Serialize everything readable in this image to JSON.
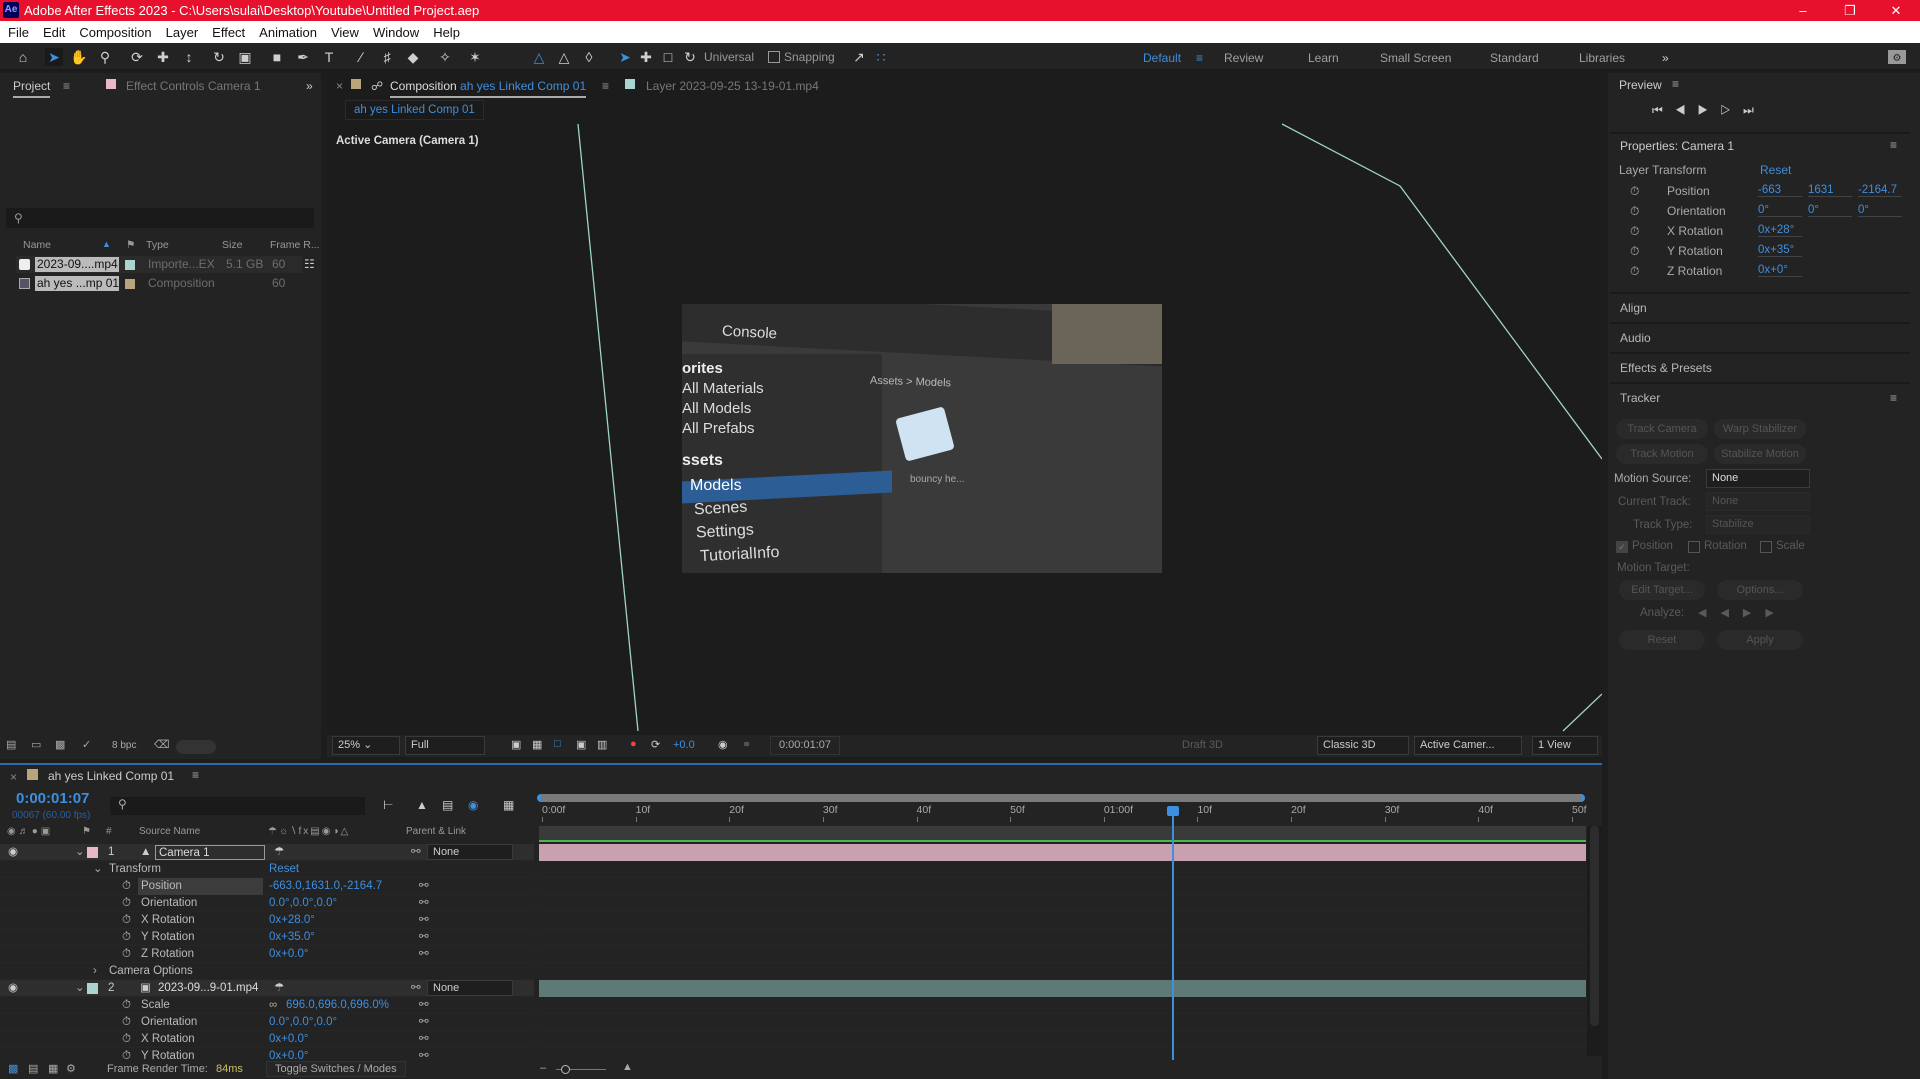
{
  "window": {
    "title": "Adobe After Effects 2023 - C:\\Users\\sulai\\Desktop\\Youtube\\Untitled Project.aep",
    "logo": "Ae"
  },
  "menu": [
    "File",
    "Edit",
    "Composition",
    "Layer",
    "Effect",
    "Animation",
    "View",
    "Window",
    "Help"
  ],
  "toolbar": {
    "axis_mode": "Universal",
    "snapping": "Snapping",
    "workspaces": [
      "Default",
      "Review",
      "Learn",
      "Small Screen",
      "Standard",
      "Libraries"
    ],
    "active_workspace": "Default"
  },
  "project_panel": {
    "tab": "Project",
    "effect_controls_tab": "Effect Controls Camera 1",
    "columns": [
      "Name",
      "Type",
      "Size",
      "Frame R..."
    ],
    "items": [
      {
        "name": "2023-09....mp4",
        "type": "Importe...EX",
        "size": "5.1 GB",
        "frame_rate": "60",
        "label_color": "#a9d4d0"
      },
      {
        "name": "ah yes ...mp 01",
        "type": "Composition",
        "size": "",
        "frame_rate": "60",
        "label_color": "#b9a57c"
      }
    ],
    "bpc": "8 bpc"
  },
  "comp_panel": {
    "tab_prefix": "Composition",
    "tab_name": "ah yes Linked Comp 01",
    "layer_tab": "Layer 2023-09-25 13-19-01.mp4",
    "breadcrumb": "ah yes Linked Comp 01",
    "camera_label": "Active Camera (Camera 1)",
    "footage_text": {
      "console": "Console",
      "favorites": "orites",
      "fav_items": [
        "All Materials",
        "All Models",
        "All Prefabs"
      ],
      "assets": "ssets",
      "asset_items": [
        "Models",
        "Scenes",
        "Settings",
        "TutorialInfo"
      ],
      "breadcrumb": "Assets > Models",
      "asset_label": "bouncy he..."
    },
    "footer": {
      "zoom": "25%",
      "resolution": "Full",
      "exposure": "+0.0",
      "timecode": "0:00:01:07",
      "draft": "Draft 3D",
      "renderer": "Classic 3D",
      "view": "Active Camer...",
      "layout": "1 View"
    }
  },
  "preview": {
    "title": "Preview"
  },
  "properties": {
    "title": "Properties: Camera 1",
    "section": "Layer Transform",
    "reset": "Reset",
    "rows": [
      {
        "label": "Position",
        "values": [
          "-663",
          "1631",
          "-2164.7"
        ]
      },
      {
        "label": "Orientation",
        "values": [
          "0°",
          "0°",
          "0°"
        ]
      },
      {
        "label": "X Rotation",
        "values": [
          "0x+28°"
        ]
      },
      {
        "label": "Y Rotation",
        "values": [
          "0x+35°"
        ]
      },
      {
        "label": "Z Rotation",
        "values": [
          "0x+0°"
        ]
      }
    ]
  },
  "collapsed_panels": [
    "Align",
    "Audio",
    "Effects & Presets"
  ],
  "tracker": {
    "title": "Tracker",
    "buttons": [
      "Track Camera",
      "Warp Stabilizer",
      "Track Motion",
      "Stabilize Motion"
    ],
    "motion_source_label": "Motion Source:",
    "motion_source": "None",
    "current_track_label": "Current Track:",
    "current_track": "None",
    "track_type_label": "Track Type:",
    "track_type": "Stabilize",
    "checks": [
      {
        "label": "Position",
        "checked": true
      },
      {
        "label": "Rotation",
        "checked": false
      },
      {
        "label": "Scale",
        "checked": false
      }
    ],
    "motion_target": "Motion Target:",
    "edit_target": "Edit Target...",
    "options": "Options...",
    "analyze": "Analyze:",
    "reset": "Reset",
    "apply": "Apply"
  },
  "timeline": {
    "tab": "ah yes Linked Comp 01",
    "timecode": "0:00:01:07",
    "frames": "00067 (60.00 fps)",
    "columns": {
      "num": "#",
      "source": "Source Name",
      "parent": "Parent & Link"
    },
    "ruler": [
      "0:00f",
      "10f",
      "20f",
      "30f",
      "40f",
      "50f",
      "01:00f",
      "10f",
      "20f",
      "30f",
      "40f",
      "50f"
    ],
    "rows": [
      {
        "kind": "layer",
        "num": "1",
        "name": "Camera 1",
        "parent": "None",
        "color": "#e6b8c8"
      },
      {
        "kind": "group",
        "name": "Transform",
        "value": "Reset"
      },
      {
        "kind": "prop",
        "name": "Position",
        "value": "-663.0,1631.0,-2164.7"
      },
      {
        "kind": "prop",
        "name": "Orientation",
        "value": "0.0°,0.0°,0.0°"
      },
      {
        "kind": "prop",
        "name": "X Rotation",
        "value": "0x+28.0°"
      },
      {
        "kind": "prop",
        "name": "Y Rotation",
        "value": "0x+35.0°"
      },
      {
        "kind": "prop",
        "name": "Z Rotation",
        "value": "0x+0.0°"
      },
      {
        "kind": "group",
        "name": "Camera Options",
        "value": ""
      },
      {
        "kind": "layer",
        "num": "2",
        "name": "2023-09...9-01.mp4",
        "parent": "None",
        "color": "#a9d4d0"
      },
      {
        "kind": "prop",
        "name": "Scale",
        "value": "696.0,696.0,696.0%"
      },
      {
        "kind": "prop",
        "name": "Orientation",
        "value": "0.0°,0.0°,0.0°"
      },
      {
        "kind": "prop",
        "name": "X Rotation",
        "value": "0x+0.0°"
      },
      {
        "kind": "prop",
        "name": "Y Rotation",
        "value": "0x+0.0°"
      }
    ],
    "status": {
      "render_label": "Frame Render Time:",
      "render_value": "84ms",
      "toggle": "Toggle Switches / Modes"
    }
  }
}
